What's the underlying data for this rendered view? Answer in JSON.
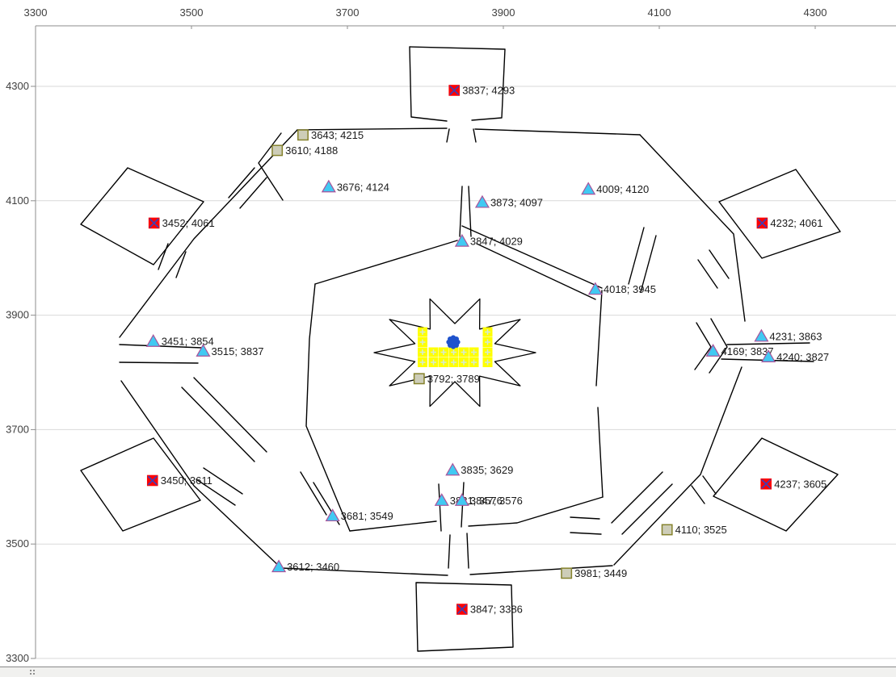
{
  "chart_data": {
    "type": "scatter",
    "title": "",
    "xlabel": "",
    "ylabel": "",
    "x_axis": {
      "min": 3300,
      "max": 4300,
      "ticks": [
        3300,
        3500,
        3700,
        3900,
        4100,
        4300
      ],
      "position": "top"
    },
    "y_axis": {
      "min": 3300,
      "max": 4300,
      "ticks": [
        4300,
        4100,
        3900,
        3700,
        3500,
        3300
      ],
      "position": "left"
    },
    "grid": "horizontal-only",
    "legend": "none",
    "label_separator": "; ",
    "series": [
      {
        "name": "red-squares",
        "marker": "red-square-x",
        "fill": "#ff0000",
        "accent": "#3f3fb4",
        "points": [
          {
            "x": 3837,
            "y": 4293
          },
          {
            "x": 3452,
            "y": 4061
          },
          {
            "x": 4232,
            "y": 4061
          },
          {
            "x": 3450,
            "y": 3611
          },
          {
            "x": 4237,
            "y": 3605
          },
          {
            "x": 3847,
            "y": 3386
          }
        ]
      },
      {
        "name": "cyan-triangles",
        "marker": "triangle",
        "fill": "#41c9f2",
        "accent": "#a8539b",
        "points": [
          {
            "x": 3676,
            "y": 4124
          },
          {
            "x": 3873,
            "y": 4097
          },
          {
            "x": 4009,
            "y": 4120
          },
          {
            "x": 3847,
            "y": 4029
          },
          {
            "x": 4018,
            "y": 3945
          },
          {
            "x": 3451,
            "y": 3854
          },
          {
            "x": 3515,
            "y": 3837
          },
          {
            "x": 4231,
            "y": 3863
          },
          {
            "x": 4169,
            "y": 3837
          },
          {
            "x": 4240,
            "y": 3827
          },
          {
            "x": 3835,
            "y": 3629
          },
          {
            "x": 3821,
            "y": 3576
          },
          {
            "x": 3847,
            "y": 3576
          },
          {
            "x": 3681,
            "y": 3549
          },
          {
            "x": 3612,
            "y": 3460
          }
        ]
      },
      {
        "name": "tan-squares",
        "marker": "tan-square",
        "fill": "#cdcdb8",
        "accent": "#85822c",
        "points": [
          {
            "x": 3643,
            "y": 4215
          },
          {
            "x": 3610,
            "y": 4188
          },
          {
            "x": 3792,
            "y": 3789
          },
          {
            "x": 4110,
            "y": 3525
          },
          {
            "x": 3981,
            "y": 3449
          }
        ]
      }
    ]
  },
  "colors": {
    "gridline": "#d9d9d9",
    "axis": "#8e8e8e",
    "tick_label": "#404040",
    "data_label": "#1a1a1a",
    "wall": "#000000",
    "keep_cell": "#ffff00",
    "keep_plus": "#d4ead2",
    "flower": "#1e52cc"
  }
}
